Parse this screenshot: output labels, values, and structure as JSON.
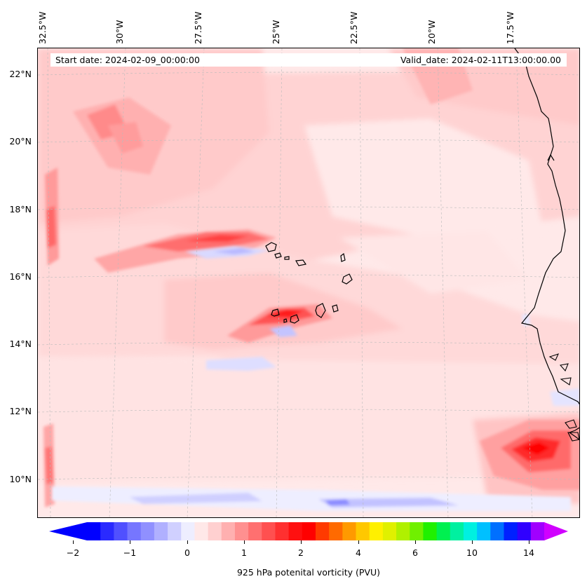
{
  "map": {
    "start_date_text": "Start date: 2024-02-09_00:00:00",
    "valid_date_text": "Valid_date: 2024-02-11T13:00:00.00",
    "longitude_labels": [
      "32.5°W",
      "30°W",
      "27.5°W",
      "25°W",
      "22.5°W",
      "20°W",
      "17.5°W"
    ],
    "latitude_labels": [
      "22°N",
      "20°N",
      "18°N",
      "16°N",
      "14°N",
      "12°N",
      "10°N"
    ],
    "extent": {
      "lon_min": -32.6,
      "lon_max": -15.5,
      "lat_min": 8.9,
      "lat_max": 22.8
    },
    "features": [
      "coastline-west-africa",
      "cape-verde-islands",
      "gridlines-dashed"
    ]
  },
  "colorbar": {
    "label": "925 hPa potenital vorticity (PVU)",
    "tick_labels": [
      "−2",
      "−1",
      "0",
      "1",
      "2",
      "4",
      "6",
      "10",
      "14"
    ],
    "colors": [
      "#0000ff",
      "#2a2aff",
      "#5050ff",
      "#7676ff",
      "#9090ff",
      "#b0b0ff",
      "#d0d0ff",
      "#eeeeff",
      "#ffe8e8",
      "#ffd0d0",
      "#ffb0b0",
      "#ff9090",
      "#ff7070",
      "#ff5050",
      "#ff3030",
      "#ff1010",
      "#ff0000",
      "#ff3a00",
      "#ff6a00",
      "#ff9a00",
      "#ffc800",
      "#fff000",
      "#e0f000",
      "#b0f000",
      "#70f000",
      "#20f000",
      "#00f050",
      "#00f0a0",
      "#00f0e0",
      "#00c0ff",
      "#0070ff",
      "#0020ff",
      "#3000ff",
      "#a000ff"
    ],
    "extend_min_color": "#0000ff",
    "extend_max_color": "#d000ff"
  }
}
